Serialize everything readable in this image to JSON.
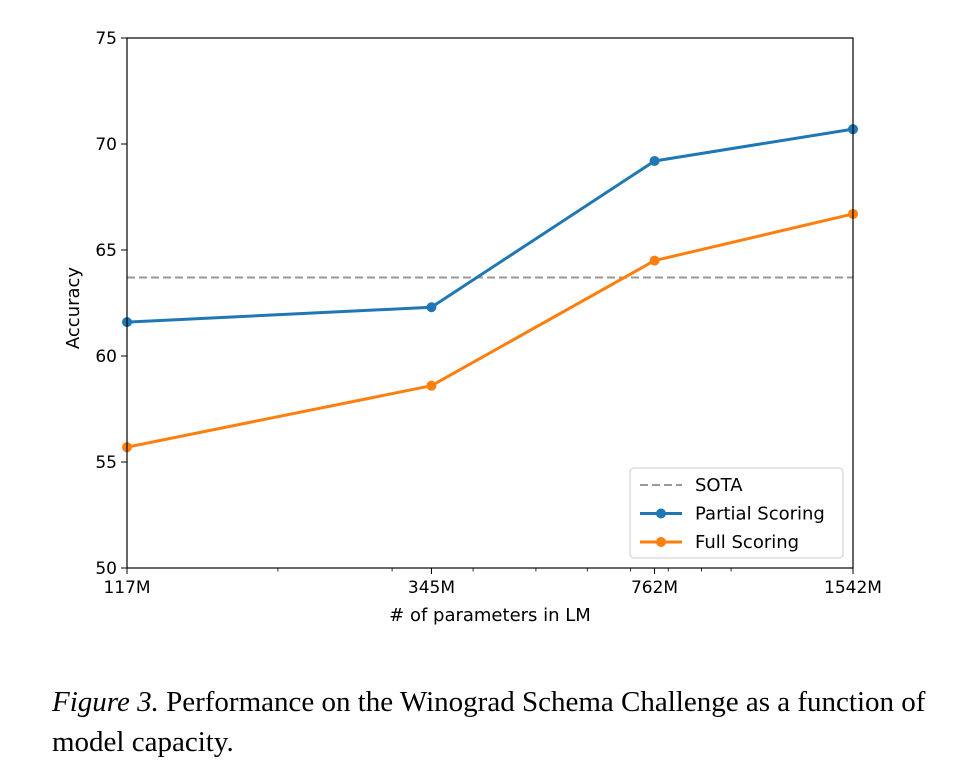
{
  "chart_data": {
    "type": "line",
    "title": "",
    "xlabel": "# of parameters in LM",
    "ylabel": "Accuracy",
    "x_scale": "log",
    "x_ticks": [
      {
        "value": 117,
        "label": "117M"
      },
      {
        "value": 345,
        "label": "345M"
      },
      {
        "value": 762,
        "label": "762M"
      },
      {
        "value": 1542,
        "label": "1542M"
      }
    ],
    "xlim": [
      117,
      1542
    ],
    "ylim": [
      50,
      75
    ],
    "y_ticks": [
      50,
      55,
      60,
      65,
      70,
      75
    ],
    "grid": false,
    "legend_location": "lower right",
    "reference_lines": [
      {
        "name": "SOTA",
        "y": 63.7,
        "color": "#999999",
        "style": "dashed"
      }
    ],
    "series": [
      {
        "name": "Partial Scoring",
        "color": "#1f77b4",
        "x": [
          117,
          345,
          762,
          1542
        ],
        "values": [
          61.6,
          62.3,
          69.2,
          70.7
        ]
      },
      {
        "name": "Full Scoring",
        "color": "#ff7f0e",
        "x": [
          117,
          345,
          762,
          1542
        ],
        "values": [
          55.7,
          58.6,
          64.5,
          66.7
        ]
      }
    ]
  },
  "caption": {
    "label": "Figure 3.",
    "text": " Performance on the Winograd Schema Challenge as a function of model capacity."
  }
}
